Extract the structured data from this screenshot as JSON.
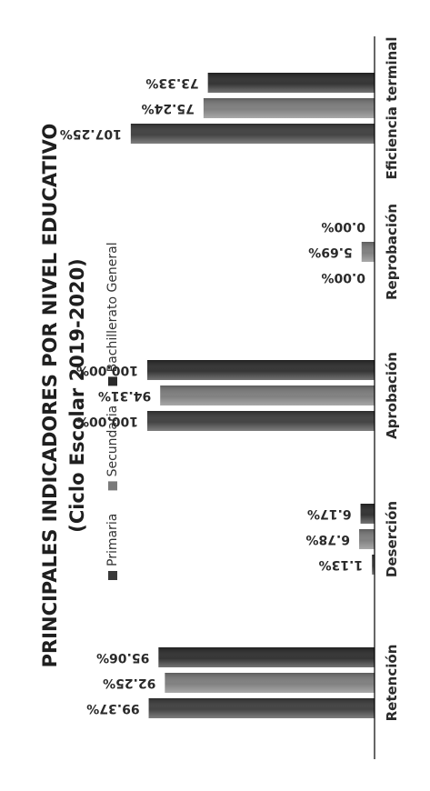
{
  "chart_data": {
    "type": "bar",
    "title": "PRINCIPALES INDICADORES POR NIVEL EDUCATIVO",
    "subtitle": "(Ciclo Escolar 2019-2020)",
    "categories": [
      "Retención",
      "Deserción",
      "Aprobación",
      "Reprobación",
      "Eficiencia terminal"
    ],
    "series": [
      {
        "name": "Primaria",
        "values": [
          99.37,
          1.13,
          100.0,
          0.0,
          107.25
        ],
        "labels": [
          "99.37%",
          "1.13%",
          "100.00%",
          "0.00%",
          "107.25%"
        ],
        "color": "#3a3a3a"
      },
      {
        "name": "Secundaria",
        "values": [
          92.25,
          6.78,
          94.31,
          5.69,
          75.24
        ],
        "labels": [
          "92.25%",
          "6.78%",
          "94.31%",
          "5.69%",
          "75.24%"
        ],
        "color": "#7a7a7a"
      },
      {
        "name": "Bachillerato General",
        "values": [
          95.06,
          6.17,
          100.0,
          0.0,
          73.33
        ],
        "labels": [
          "95.06%",
          "6.17%",
          "100.00%",
          "0.00%",
          "73.33%"
        ],
        "color": "#2a2a2a"
      }
    ],
    "ylim": [
      0,
      120
    ],
    "grid": false,
    "legend_position": "top"
  }
}
